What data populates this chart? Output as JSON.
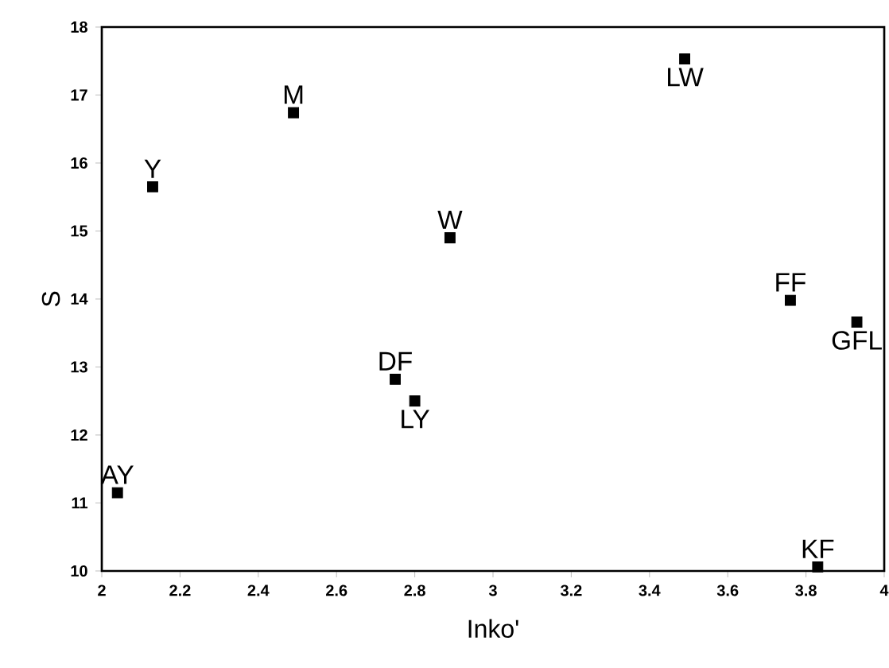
{
  "chart_data": {
    "type": "scatter",
    "xlabel": "Inko'",
    "ylabel": "S",
    "xlim": [
      2,
      4
    ],
    "ylim": [
      10,
      18
    ],
    "xticks": [
      2,
      2.2,
      2.4,
      2.6,
      2.8,
      3,
      3.2,
      3.4,
      3.6,
      3.8,
      4
    ],
    "yticks": [
      10,
      11,
      12,
      13,
      14,
      15,
      16,
      17,
      18
    ],
    "marker": "square",
    "grid": false,
    "series": [
      {
        "name": "AY",
        "color": "#000000",
        "x": [
          2.04
        ],
        "values": [
          11.15
        ]
      },
      {
        "name": "Y",
        "color": "#000000",
        "x": [
          2.13
        ],
        "values": [
          15.65
        ]
      },
      {
        "name": "M",
        "color": "#000000",
        "x": [
          2.49
        ],
        "values": [
          16.74
        ]
      },
      {
        "name": "DF",
        "color": "#000000",
        "x": [
          2.75
        ],
        "values": [
          12.82
        ]
      },
      {
        "name": "LY",
        "color": "#000000",
        "x": [
          2.8
        ],
        "values": [
          12.5
        ]
      },
      {
        "name": "W",
        "color": "#000000",
        "x": [
          2.89
        ],
        "values": [
          14.9
        ]
      },
      {
        "name": "LW",
        "color": "#000000",
        "x": [
          3.49
        ],
        "values": [
          17.53
        ]
      },
      {
        "name": "FF",
        "color": "#000000",
        "x": [
          3.76
        ],
        "values": [
          13.98
        ]
      },
      {
        "name": "GFL",
        "color": "#000000",
        "x": [
          3.93
        ],
        "values": [
          13.66
        ]
      },
      {
        "name": "KF",
        "color": "#000000",
        "x": [
          3.83
        ],
        "values": [
          10.06
        ]
      }
    ]
  }
}
